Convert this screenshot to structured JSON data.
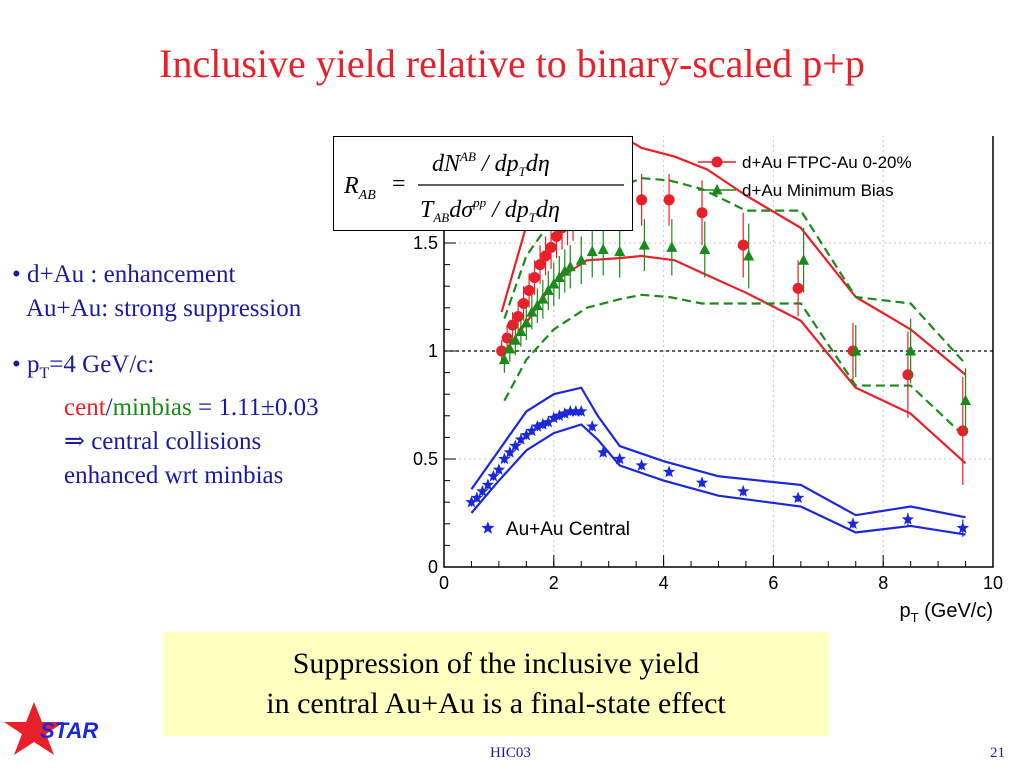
{
  "slide": {
    "title": "Inclusive yield relative to binary-scaled p+p",
    "bullets": {
      "b1_line1": "• d+Au : enhancement",
      "b1_line2": "Au+Au: strong suppression",
      "b2_prefix": "• p",
      "b2_sub": "T",
      "b2_suffix": "=4 GeV/c:",
      "ratio_cent": "cent",
      "ratio_slash": "/",
      "ratio_minbias": "minbias",
      "ratio_value": " = 1.11±0.03",
      "arrow_line": "⇒ central collisions",
      "last_line": "enhanced wrt minbias"
    },
    "conclusion": {
      "line1": "Suppression of the inclusive yield",
      "line2": "in central Au+Au is a final-state effect"
    },
    "footer": {
      "center": "HIC03",
      "page": "21"
    },
    "logo_text": "STAR",
    "formula": {
      "lhs": "R",
      "lhs_sub": "AB",
      "eq": "=",
      "num": "dN",
      "num_sup": "AB",
      "num_rest": " / dp",
      "num_sub": "T",
      "num_end": "dη",
      "den": "T",
      "den_sub": "AB",
      "den_mid": "dσ",
      "den_sup": "pp",
      "den_rest": " / dp",
      "den_sub2": "T",
      "den_end": "dη"
    },
    "colors": {
      "title": "#e8202a",
      "text": "#1a1aa0",
      "red": "#e8202a",
      "green": "#1a8a1a",
      "blue": "#1a28d8",
      "box": "#ffffc0"
    }
  },
  "chart_data": {
    "type": "scatter",
    "xlabel": "p",
    "xlabel_sub": "T",
    "xlabel_unit": " (GeV/c)",
    "xlim": [
      0,
      10
    ],
    "ylim": [
      0,
      2
    ],
    "x_ticks": [
      "0",
      "2",
      "4",
      "6",
      "8",
      "10"
    ],
    "y_ticks": [
      "0",
      "0.5",
      "1",
      "1.5",
      "2"
    ],
    "reference_line": 1,
    "grid": true,
    "series": [
      {
        "name": "d+Au FTPC-Au 0-20%",
        "color": "#e8202a",
        "marker": "circle",
        "x": [
          1.05,
          1.15,
          1.25,
          1.35,
          1.45,
          1.55,
          1.65,
          1.75,
          1.85,
          1.95,
          2.05,
          2.15,
          2.25,
          2.35,
          2.55,
          2.75,
          2.95,
          3.2,
          3.6,
          4.1,
          4.7,
          5.45,
          6.45,
          7.45,
          8.45,
          9.45
        ],
        "y": [
          1.0,
          1.06,
          1.12,
          1.16,
          1.22,
          1.28,
          1.34,
          1.4,
          1.44,
          1.48,
          1.53,
          1.57,
          1.6,
          1.62,
          1.7,
          1.7,
          1.68,
          1.67,
          1.7,
          1.7,
          1.64,
          1.49,
          1.29,
          1.0,
          0.89,
          0.63
        ],
        "err": [
          0.05,
          0.06,
          0.06,
          0.07,
          0.08,
          0.08,
          0.08,
          0.09,
          0.09,
          0.1,
          0.1,
          0.1,
          0.11,
          0.11,
          0.12,
          0.12,
          0.12,
          0.12,
          0.12,
          0.12,
          0.15,
          0.15,
          0.13,
          0.13,
          0.2,
          0.25
        ]
      },
      {
        "name": "d+Au Minimum Bias",
        "color": "#1a8a1a",
        "marker": "triangle",
        "x": [
          1.1,
          1.2,
          1.3,
          1.4,
          1.5,
          1.6,
          1.7,
          1.8,
          1.9,
          2.0,
          2.1,
          2.2,
          2.3,
          2.5,
          2.7,
          2.9,
          3.2,
          3.65,
          4.15,
          4.75,
          5.55,
          6.55,
          7.5,
          8.5,
          9.5
        ],
        "y": [
          0.96,
          1.01,
          1.05,
          1.09,
          1.13,
          1.18,
          1.21,
          1.24,
          1.28,
          1.31,
          1.34,
          1.37,
          1.39,
          1.42,
          1.46,
          1.47,
          1.46,
          1.49,
          1.48,
          1.47,
          1.44,
          1.42,
          1.0,
          1.0,
          0.77
        ],
        "err": [
          0.06,
          0.06,
          0.07,
          0.07,
          0.08,
          0.08,
          0.08,
          0.09,
          0.09,
          0.1,
          0.1,
          0.1,
          0.1,
          0.11,
          0.12,
          0.12,
          0.12,
          0.12,
          0.13,
          0.13,
          0.15,
          0.15,
          0.12,
          0.15,
          0.15
        ]
      },
      {
        "name": "Au+Au Central",
        "color": "#1a28d8",
        "marker": "star",
        "x": [
          0.5,
          0.6,
          0.7,
          0.8,
          0.9,
          1.0,
          1.1,
          1.2,
          1.3,
          1.4,
          1.5,
          1.6,
          1.7,
          1.8,
          1.9,
          2.0,
          2.1,
          2.2,
          2.3,
          2.4,
          2.5,
          2.7,
          2.9,
          3.2,
          3.6,
          4.1,
          4.7,
          5.45,
          6.45,
          7.45,
          8.45,
          9.45
        ],
        "y": [
          0.3,
          0.32,
          0.35,
          0.38,
          0.42,
          0.45,
          0.5,
          0.53,
          0.56,
          0.59,
          0.61,
          0.63,
          0.65,
          0.66,
          0.67,
          0.69,
          0.7,
          0.71,
          0.72,
          0.72,
          0.72,
          0.65,
          0.53,
          0.5,
          0.47,
          0.44,
          0.39,
          0.35,
          0.32,
          0.2,
          0.22,
          0.18
        ],
        "err": [
          0.02,
          0.02,
          0.02,
          0.02,
          0.02,
          0.02,
          0.02,
          0.02,
          0.02,
          0.02,
          0.02,
          0.02,
          0.02,
          0.02,
          0.02,
          0.02,
          0.02,
          0.02,
          0.02,
          0.02,
          0.02,
          0.02,
          0.02,
          0.02,
          0.02,
          0.02,
          0.02,
          0.02,
          0.02,
          0.02,
          0.03,
          0.04
        ]
      }
    ],
    "bands": [
      {
        "series": "d+Au FTPC-Au 0-20%",
        "style": "solid",
        "color": "#e8202a",
        "upper": {
          "x": [
            1.05,
            1.5,
            2.0,
            2.6,
            3.2,
            3.6,
            4.2,
            4.8,
            5.5,
            6.5,
            7.5,
            8.5,
            9.5
          ],
          "y": [
            1.18,
            1.58,
            1.85,
            1.95,
            2.0,
            1.94,
            1.9,
            1.84,
            1.72,
            1.57,
            1.25,
            1.1,
            0.89
          ]
        },
        "lower": {
          "x": [
            1.05,
            1.5,
            2.0,
            2.6,
            3.2,
            3.6,
            4.2,
            4.8,
            5.5,
            6.5,
            7.5,
            8.5,
            9.5
          ],
          "y": [
            0.98,
            1.13,
            1.32,
            1.42,
            1.43,
            1.44,
            1.42,
            1.35,
            1.27,
            1.14,
            0.83,
            0.71,
            0.48
          ]
        }
      },
      {
        "series": "d+Au Minimum Bias",
        "style": "dashed",
        "color": "#1a8a1a",
        "upper": {
          "x": [
            1.1,
            1.5,
            2.0,
            2.6,
            3.2,
            3.6,
            4.1,
            4.7,
            5.5,
            6.5,
            7.5,
            8.5,
            9.5
          ],
          "y": [
            1.15,
            1.44,
            1.62,
            1.7,
            1.76,
            1.8,
            1.79,
            1.75,
            1.65,
            1.65,
            1.25,
            1.22,
            0.94
          ]
        },
        "lower": {
          "x": [
            1.1,
            1.5,
            2.0,
            2.6,
            3.2,
            3.6,
            4.1,
            4.7,
            5.5,
            6.5,
            7.5,
            8.5,
            9.5
          ],
          "y": [
            0.77,
            0.96,
            1.1,
            1.2,
            1.24,
            1.26,
            1.25,
            1.22,
            1.22,
            1.22,
            0.84,
            0.84,
            0.6
          ]
        }
      },
      {
        "series": "Au+Au Central",
        "style": "solid",
        "color": "#1a28d8",
        "upper": {
          "x": [
            0.5,
            1.0,
            1.5,
            2.0,
            2.5,
            2.8,
            3.2,
            4.0,
            5.0,
            6.5,
            7.5,
            8.5,
            9.5
          ],
          "y": [
            0.36,
            0.54,
            0.72,
            0.8,
            0.83,
            0.7,
            0.56,
            0.49,
            0.42,
            0.38,
            0.24,
            0.28,
            0.23
          ]
        },
        "lower": {
          "x": [
            0.5,
            1.0,
            1.5,
            2.0,
            2.5,
            2.8,
            3.2,
            4.0,
            5.0,
            6.5,
            7.5,
            8.5,
            9.5
          ],
          "y": [
            0.25,
            0.4,
            0.54,
            0.62,
            0.66,
            0.59,
            0.47,
            0.4,
            0.33,
            0.28,
            0.16,
            0.19,
            0.15
          ]
        }
      }
    ]
  }
}
